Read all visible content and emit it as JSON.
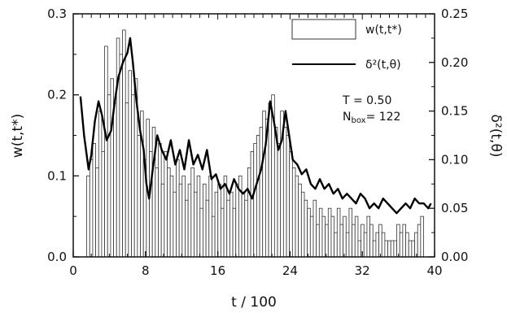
{
  "chart_data": {
    "type": "bar",
    "xlabel": "t / 100",
    "ylabel_left": "w(t,t*)",
    "ylabel_right": "δ²(t,θ)",
    "xlim": [
      0,
      40
    ],
    "ylim_left": [
      0,
      0.3
    ],
    "ylim_right": [
      0,
      0.25
    ],
    "x_ticks": [
      "0",
      "8",
      "16",
      "24",
      "32",
      "40"
    ],
    "y_ticks_left": [
      "0.0",
      "0.1",
      "0.2",
      "0.3"
    ],
    "y_ticks_right": [
      "0.00",
      "0.05",
      "0.10",
      "0.15",
      "0.20",
      "0.25"
    ],
    "grid": false,
    "legend_position": "top-right",
    "series": [
      {
        "name": "w(t,t*)",
        "type": "bar",
        "axis": "left",
        "x": [
          1.66,
          1.99,
          2.32,
          2.65,
          2.98,
          3.31,
          3.64,
          3.97,
          4.3,
          4.63,
          4.96,
          5.29,
          5.62,
          5.95,
          6.28,
          6.61,
          6.94,
          7.27,
          7.6,
          7.93,
          8.26,
          8.59,
          8.92,
          9.25,
          9.58,
          9.91,
          10.24,
          10.57,
          10.9,
          11.23,
          11.56,
          11.89,
          12.22,
          12.55,
          12.88,
          13.21,
          13.54,
          13.87,
          14.2,
          14.53,
          14.86,
          15.19,
          15.52,
          15.85,
          16.18,
          16.51,
          16.84,
          17.17,
          17.5,
          17.83,
          18.16,
          18.49,
          18.82,
          19.15,
          19.48,
          19.81,
          20.14,
          20.47,
          20.8,
          21.13,
          21.46,
          21.79,
          22.12,
          22.45,
          22.78,
          23.11,
          23.44,
          23.77,
          24.1,
          24.43,
          24.76,
          25.09,
          25.42,
          25.75,
          26.08,
          26.41,
          26.74,
          27.07,
          27.4,
          27.73,
          28.06,
          28.39,
          28.72,
          29.05,
          29.38,
          29.71,
          30.04,
          30.37,
          30.7,
          31.03,
          31.36,
          31.69,
          32.02,
          32.35,
          32.68,
          33.01,
          33.34,
          33.67,
          34.0,
          34.33,
          34.66,
          34.99,
          35.32,
          35.65,
          35.98,
          36.31,
          36.64,
          36.97,
          37.3,
          37.63,
          37.96,
          38.29,
          38.62
        ],
        "values": [
          0.1,
          0.12,
          0.14,
          0.11,
          0.18,
          0.13,
          0.26,
          0.2,
          0.22,
          0.19,
          0.27,
          0.25,
          0.28,
          0.19,
          0.23,
          0.2,
          0.22,
          0.15,
          0.18,
          0.12,
          0.17,
          0.13,
          0.16,
          0.11,
          0.14,
          0.09,
          0.13,
          0.11,
          0.1,
          0.08,
          0.12,
          0.09,
          0.1,
          0.07,
          0.09,
          0.11,
          0.08,
          0.1,
          0.06,
          0.09,
          0.07,
          0.1,
          0.05,
          0.08,
          0.09,
          0.06,
          0.1,
          0.07,
          0.08,
          0.06,
          0.09,
          0.1,
          0.08,
          0.07,
          0.11,
          0.13,
          0.14,
          0.15,
          0.16,
          0.18,
          0.17,
          0.19,
          0.2,
          0.16,
          0.14,
          0.18,
          0.16,
          0.15,
          0.13,
          0.11,
          0.1,
          0.09,
          0.08,
          0.07,
          0.06,
          0.05,
          0.07,
          0.04,
          0.06,
          0.05,
          0.04,
          0.06,
          0.05,
          0.03,
          0.06,
          0.04,
          0.05,
          0.03,
          0.06,
          0.04,
          0.05,
          0.02,
          0.04,
          0.03,
          0.05,
          0.04,
          0.02,
          0.03,
          0.04,
          0.03,
          0.02,
          0.02,
          0.02,
          0.02,
          0.04,
          0.03,
          0.04,
          0.03,
          0.02,
          0.02,
          0.03,
          0.04,
          0.05
        ]
      },
      {
        "name": "δ²(t,θ)",
        "type": "line",
        "axis": "right",
        "x": [
          0.8,
          1.2,
          1.7,
          2.0,
          2.4,
          2.8,
          3.2,
          3.7,
          4.2,
          4.6,
          5.0,
          5.5,
          6.0,
          6.3,
          6.6,
          7.0,
          7.4,
          7.8,
          8.1,
          8.4,
          8.8,
          9.3,
          9.8,
          10.3,
          10.8,
          11.3,
          11.8,
          12.3,
          12.8,
          13.3,
          13.8,
          14.3,
          14.8,
          15.3,
          15.8,
          16.3,
          16.8,
          17.3,
          17.8,
          18.3,
          18.8,
          19.3,
          19.8,
          20.3,
          20.8,
          21.3,
          21.8,
          22.3,
          22.7,
          23.1,
          23.5,
          23.9,
          24.3,
          24.8,
          25.3,
          25.8,
          26.3,
          26.8,
          27.3,
          27.8,
          28.3,
          28.8,
          29.3,
          29.8,
          30.3,
          30.8,
          31.3,
          31.8,
          32.3,
          32.8,
          33.3,
          33.8,
          34.3,
          34.8,
          35.3,
          35.8,
          36.3,
          36.8,
          37.3,
          37.8,
          38.3,
          38.8,
          39.3,
          39.6
        ],
        "values": [
          0.165,
          0.125,
          0.09,
          0.105,
          0.14,
          0.16,
          0.145,
          0.12,
          0.13,
          0.16,
          0.185,
          0.2,
          0.21,
          0.225,
          0.2,
          0.16,
          0.13,
          0.11,
          0.075,
          0.06,
          0.09,
          0.125,
          0.11,
          0.1,
          0.12,
          0.095,
          0.11,
          0.09,
          0.12,
          0.095,
          0.105,
          0.09,
          0.11,
          0.08,
          0.085,
          0.07,
          0.075,
          0.065,
          0.08,
          0.07,
          0.065,
          0.07,
          0.06,
          0.075,
          0.09,
          0.115,
          0.16,
          0.135,
          0.11,
          0.12,
          0.15,
          0.125,
          0.1,
          0.095,
          0.085,
          0.09,
          0.075,
          0.07,
          0.08,
          0.07,
          0.075,
          0.065,
          0.07,
          0.06,
          0.065,
          0.06,
          0.055,
          0.065,
          0.06,
          0.05,
          0.055,
          0.05,
          0.06,
          0.055,
          0.05,
          0.045,
          0.05,
          0.055,
          0.05,
          0.06,
          0.055,
          0.055,
          0.05,
          0.055
        ]
      }
    ],
    "annotations": {
      "temp": "T = 0.50",
      "nbox_prefix": "N",
      "nbox_sub": "box",
      "nbox_value": "= 122"
    },
    "colors": {
      "line": "#000000",
      "bar_fill": "#ffffff",
      "bar_stroke": "#333333"
    }
  }
}
